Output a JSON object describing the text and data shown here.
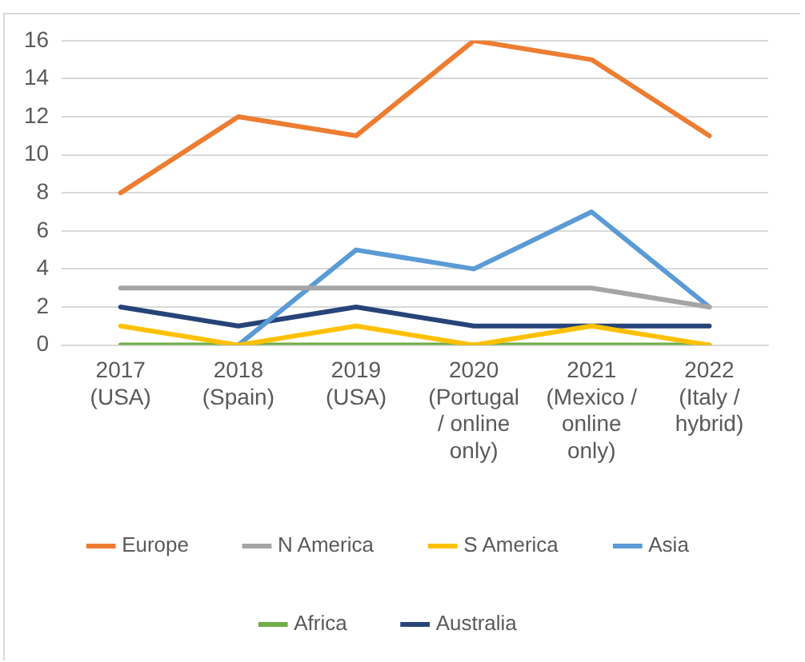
{
  "chart_data": {
    "type": "line",
    "categories": [
      "2017\n(USA)",
      "2018\n(Spain)",
      "2019\n(USA)",
      "2020\n(Portugal\n/ online\nonly)",
      "2021\n(Mexico /\nonline\nonly)",
      "2022\n(Italy /\nhybrid)"
    ],
    "series": [
      {
        "name": "Europe",
        "color": "#ed7d31",
        "values": [
          8,
          12,
          11,
          16,
          15,
          11
        ]
      },
      {
        "name": "N America",
        "color": "#a5a5a5",
        "values": [
          3,
          3,
          3,
          3,
          3,
          2
        ]
      },
      {
        "name": "S America",
        "color": "#ffc000",
        "values": [
          1,
          0,
          1,
          0,
          1,
          0
        ]
      },
      {
        "name": "Asia",
        "color": "#5b9bd5",
        "values": [
          null,
          0,
          5,
          4,
          7,
          2
        ]
      },
      {
        "name": "Africa",
        "color": "#70ad47",
        "values": [
          0,
          0,
          0,
          0,
          0,
          0
        ]
      },
      {
        "name": "Australia",
        "color": "#264478",
        "values": [
          2,
          1,
          2,
          1,
          1,
          1
        ]
      }
    ],
    "ylim": [
      0,
      16
    ],
    "yticks": [
      0,
      2,
      4,
      6,
      8,
      10,
      12,
      14,
      16
    ],
    "grid": "y",
    "legend": "bottom",
    "marker": "none",
    "line_style": "solid"
  }
}
